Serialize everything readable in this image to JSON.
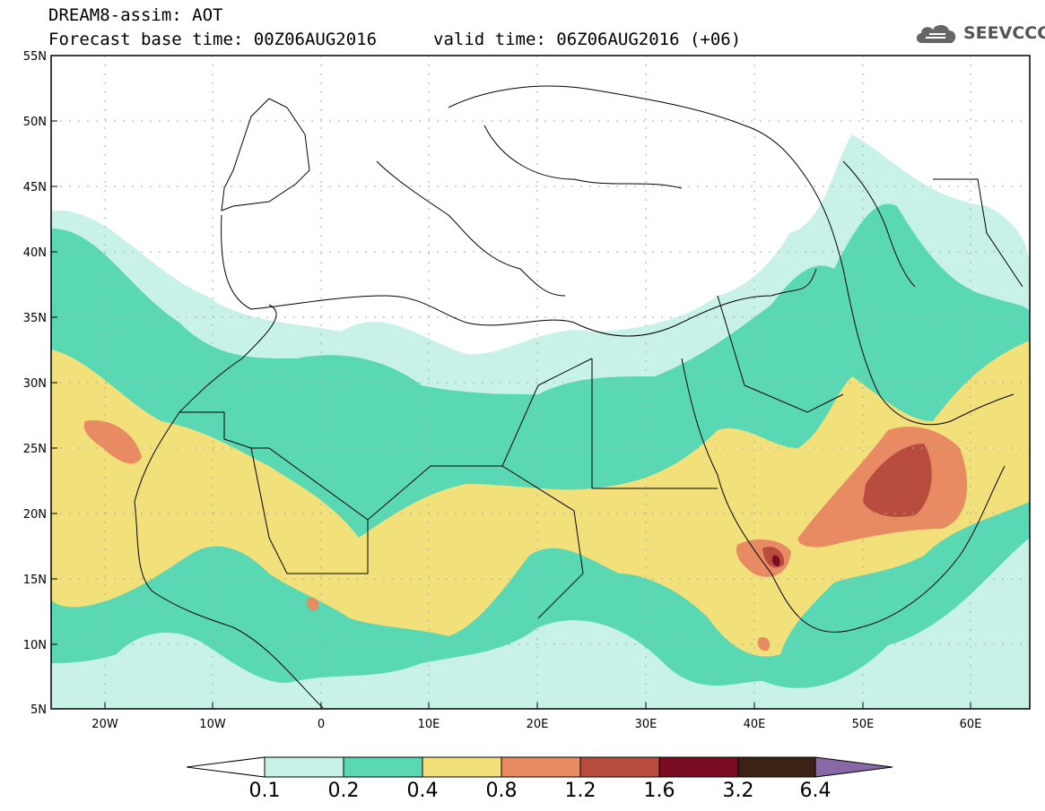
{
  "header": {
    "line1": "DREAM8-assim: AOT",
    "line2": "Forecast base time: 00Z06AUG2016",
    "line2b": "valid time: 06Z06AUG2016 (+06)",
    "logo_text": "SEEVCCC",
    "logo_icon": "cloud-icon"
  },
  "axes": {
    "lat_labels": [
      "55N",
      "50N",
      "45N",
      "40N",
      "35N",
      "30N",
      "25N",
      "20N",
      "15N",
      "10N",
      "5N"
    ],
    "lon_labels": [
      "20W",
      "10W",
      "0",
      "10E",
      "20E",
      "30E",
      "40E",
      "50E",
      "60E"
    ],
    "lat_values": [
      55,
      50,
      45,
      40,
      35,
      30,
      25,
      20,
      15,
      10,
      5
    ],
    "lon_values": [
      -20,
      -10,
      0,
      10,
      20,
      30,
      40,
      50,
      60
    ],
    "lon_range": [
      -25,
      65
    ],
    "lat_range": [
      5,
      55
    ]
  },
  "colorbar": {
    "labels": [
      "0.1",
      "0.2",
      "0.4",
      "0.8",
      "1.2",
      "1.6",
      "3.2",
      "6.4"
    ],
    "colors": [
      "#ffffff",
      "#c8f2e7",
      "#5ad8b4",
      "#f2e07a",
      "#e88a62",
      "#b84c3e",
      "#7a0d24",
      "#3a2214",
      "#8a68a8"
    ]
  },
  "map": {
    "variable": "AOT",
    "palette": {
      "c1": "#c8f2e7",
      "c2": "#5ad8b4",
      "c3": "#f2e07a",
      "c4": "#e88a62",
      "c5": "#b84c3e",
      "c6": "#7a0d24"
    }
  }
}
